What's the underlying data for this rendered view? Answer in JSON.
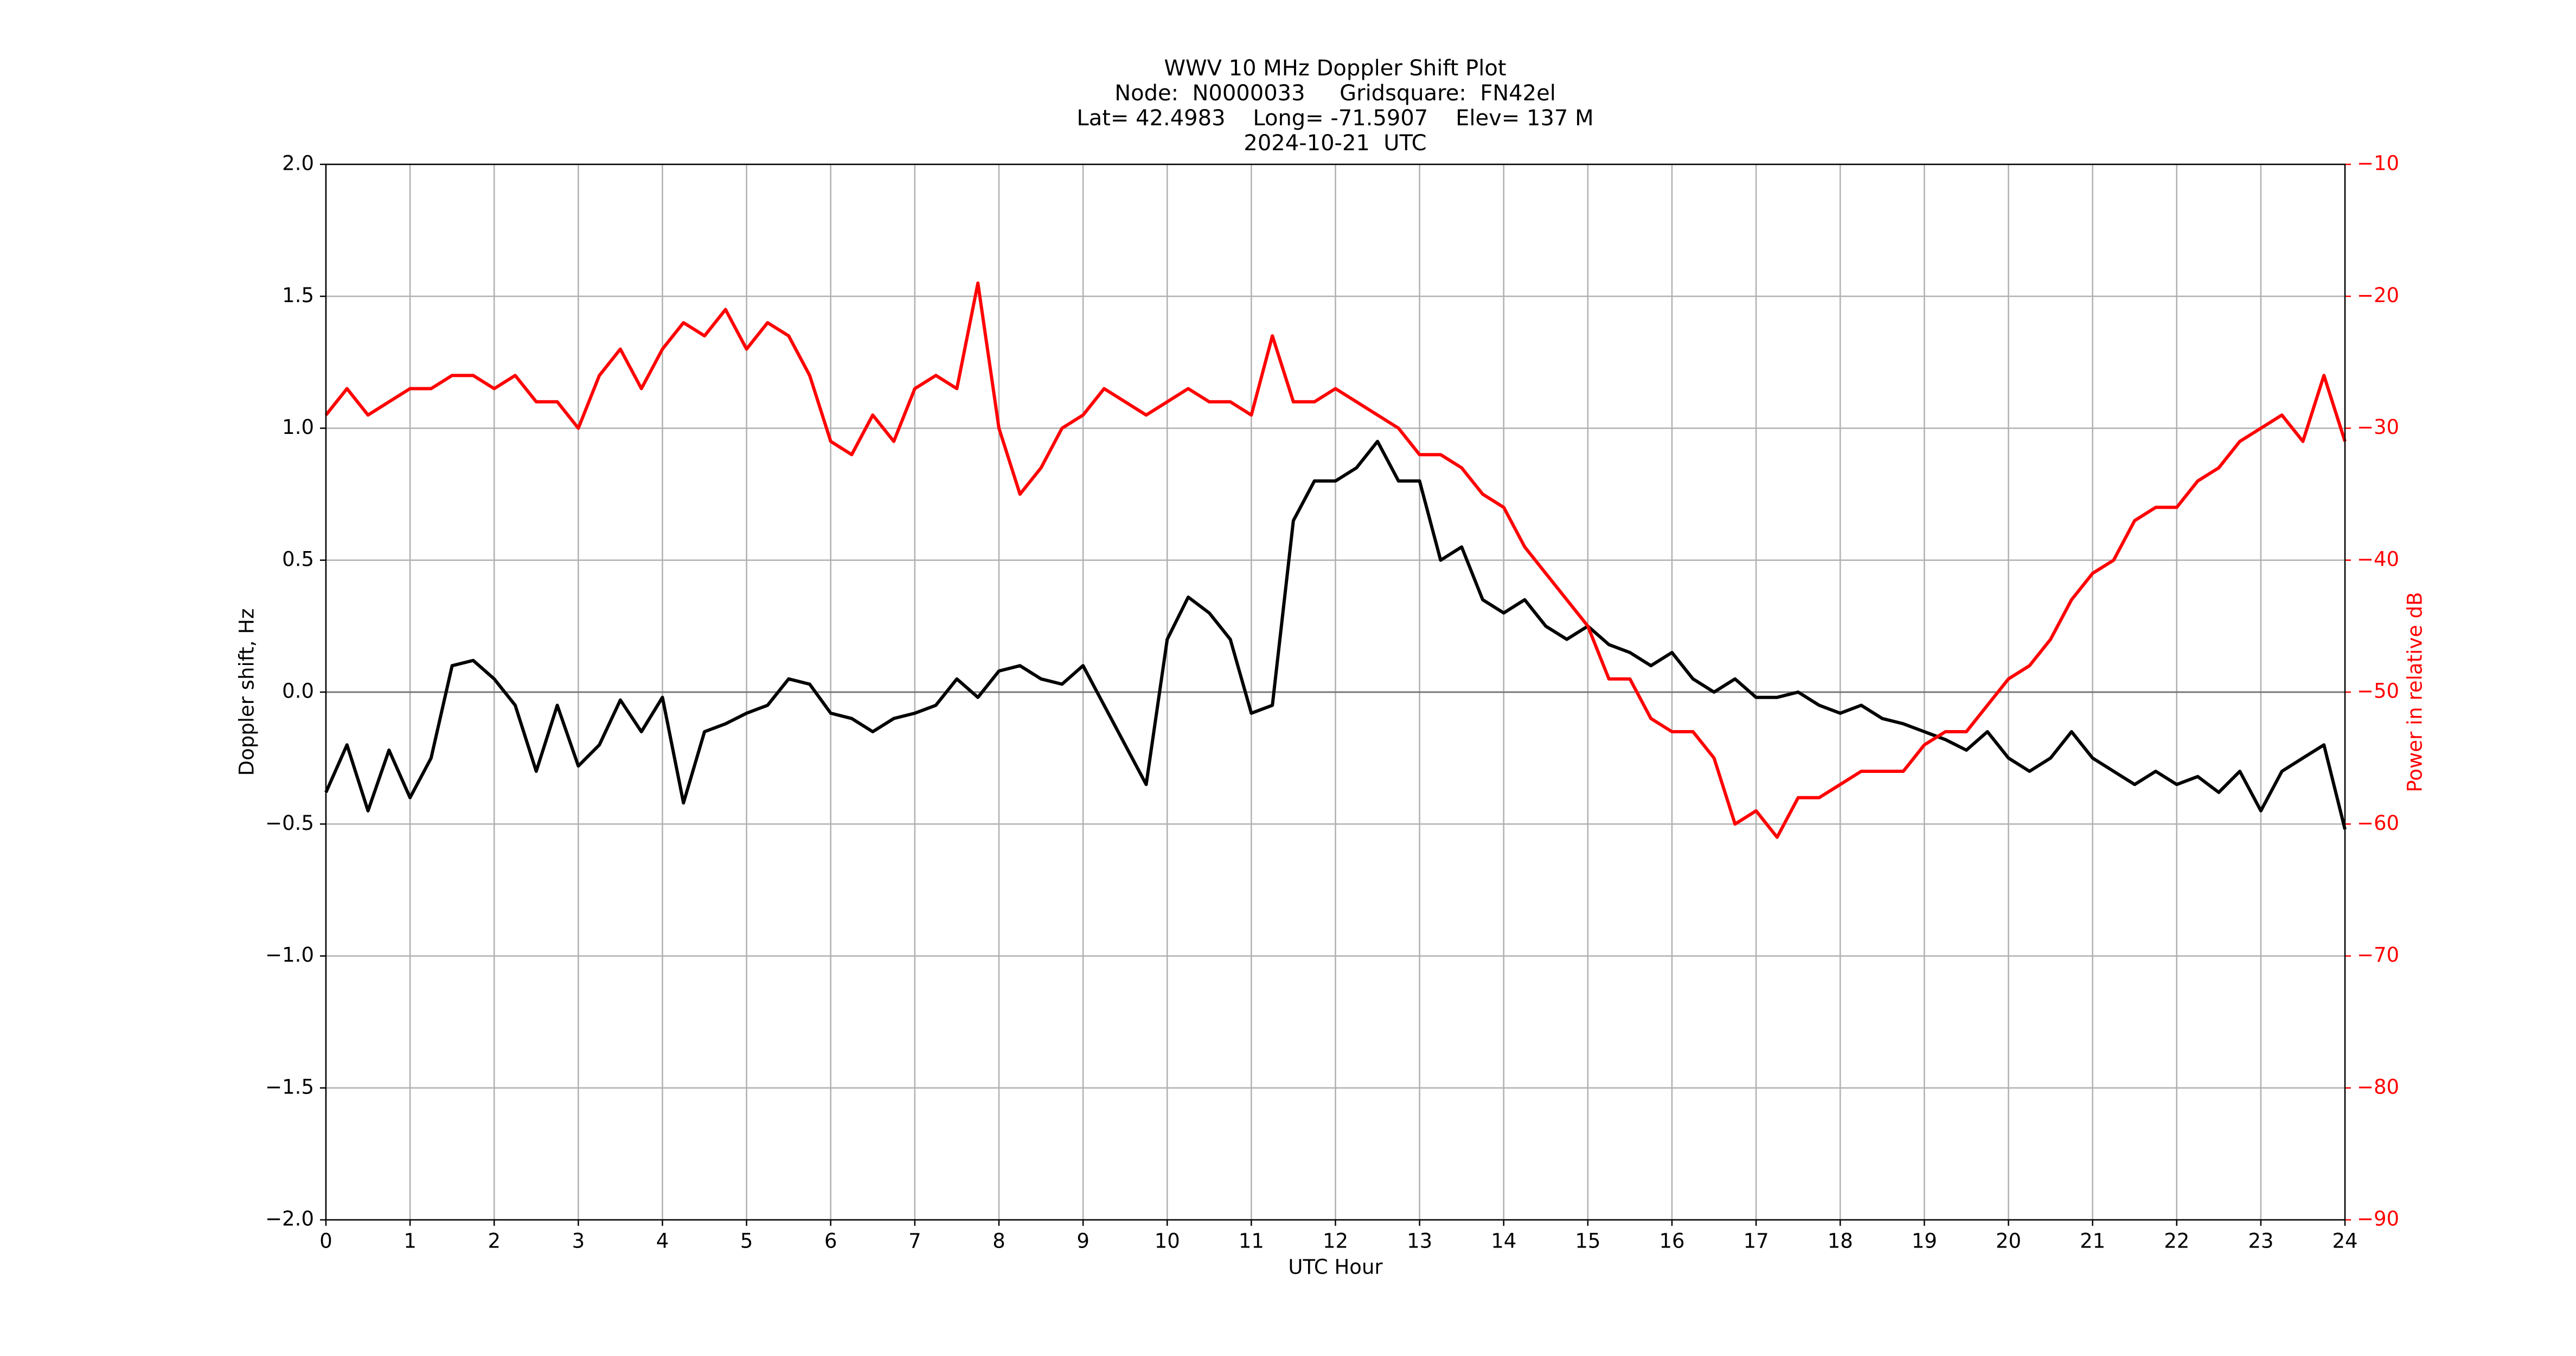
{
  "chart_data": {
    "type": "line",
    "title": [
      "WWV 10 MHz Doppler Shift Plot",
      "Node:  N0000033     Gridsquare:  FN42el",
      "Lat= 42.4983    Long= -71.5907    Elev= 137 M",
      "2024-10-21  UTC"
    ],
    "x_label": "UTC Hour",
    "y_label": "Doppler shift, Hz",
    "y2_label": "Power in relative dB",
    "x": [
      0,
      0.25,
      0.5,
      0.75,
      1,
      1.25,
      1.5,
      1.75,
      2,
      2.25,
      2.5,
      2.75,
      3,
      3.25,
      3.5,
      3.75,
      4,
      4.25,
      4.5,
      4.75,
      5,
      5.25,
      5.5,
      5.75,
      6,
      6.25,
      6.5,
      6.75,
      7,
      7.25,
      7.5,
      7.75,
      8,
      8.25,
      8.5,
      8.75,
      9,
      9.25,
      9.5,
      9.75,
      10,
      10.25,
      10.5,
      10.75,
      11,
      11.25,
      11.5,
      11.75,
      12,
      12.25,
      12.5,
      12.75,
      13,
      13.25,
      13.5,
      13.75,
      14,
      14.25,
      14.5,
      14.75,
      15,
      15.25,
      15.5,
      15.75,
      16,
      16.25,
      16.5,
      16.75,
      17,
      17.25,
      17.5,
      17.75,
      18,
      18.25,
      18.5,
      18.75,
      19,
      19.25,
      19.5,
      19.75,
      20,
      20.25,
      20.5,
      20.75,
      21,
      21.25,
      21.5,
      21.75,
      22,
      22.25,
      22.5,
      22.75,
      23,
      23.25,
      23.5,
      23.75,
      24
    ],
    "series": [
      {
        "color": "#000000",
        "values": [
          -0.38,
          -0.2,
          -0.45,
          -0.22,
          -0.4,
          -0.25,
          0.1,
          0.12,
          0.05,
          -0.05,
          -0.3,
          -0.05,
          -0.28,
          -0.2,
          -0.03,
          -0.15,
          -0.02,
          -0.42,
          -0.15,
          -0.12,
          -0.08,
          -0.05,
          0.05,
          0.03,
          -0.08,
          -0.1,
          -0.15,
          -0.1,
          -0.08,
          -0.05,
          0.05,
          -0.02,
          0.08,
          0.1,
          0.05,
          0.03,
          0.1,
          -0.05,
          -0.2,
          -0.35,
          0.2,
          0.36,
          0.3,
          0.2,
          -0.08,
          -0.05,
          0.65,
          0.8,
          0.8,
          0.85,
          0.95,
          0.8,
          0.8,
          0.5,
          0.55,
          0.35,
          0.3,
          0.35,
          0.25,
          0.2,
          0.25,
          0.18,
          0.15,
          0.1,
          0.15,
          0.05,
          0,
          0.05,
          -0.02,
          -0.02,
          0,
          -0.05,
          -0.08,
          -0.05,
          -0.1,
          -0.12,
          -0.15,
          -0.18,
          -0.22,
          -0.15,
          -0.25,
          -0.3,
          -0.25,
          -0.15,
          -0.25,
          -0.3,
          -0.35,
          -0.3,
          -0.35,
          -0.32,
          -0.38,
          -0.3,
          -0.45,
          -0.3,
          -0.25,
          -0.2,
          -0.52
        ]
      },
      {
        "color": "#ff0000",
        "axis": "y2",
        "values": [
          -29,
          -27,
          -29,
          -28,
          -27,
          -27,
          -26,
          -26,
          -27,
          -26,
          -28,
          -28,
          -30,
          -26,
          -24,
          -27,
          -24,
          -22,
          -23,
          -21,
          -24,
          -22,
          -23,
          -26,
          -31,
          -32,
          -29,
          -31,
          -27,
          -26,
          -27,
          -19,
          -30,
          -35,
          -33,
          -30,
          -29,
          -27,
          -28,
          -29,
          -28,
          -27,
          -28,
          -28,
          -29,
          -23,
          -28,
          -28,
          -27,
          -28,
          -29,
          -30,
          -32,
          -32,
          -33,
          -35,
          -36,
          -39,
          -41,
          -43,
          -45,
          -49,
          -49,
          -52,
          -53,
          -53,
          -55,
          -60,
          -59,
          -61,
          -58,
          -58,
          -57,
          -56,
          -56,
          -56,
          -54,
          -53,
          -53,
          -51,
          -49,
          -48,
          -46,
          -43,
          -41,
          -40,
          -37,
          -36,
          -36,
          -34,
          -33,
          -31,
          -30,
          -29,
          -31,
          -26,
          -31
        ]
      }
    ],
    "xlim": [
      0,
      24
    ],
    "xticks": [
      0,
      1,
      2,
      3,
      4,
      5,
      6,
      7,
      8,
      9,
      10,
      11,
      12,
      13,
      14,
      15,
      16,
      17,
      18,
      19,
      20,
      21,
      22,
      23,
      24
    ],
    "ylim": [
      -2,
      2
    ],
    "yticks": [
      {
        "value": -2,
        "label": "−2.0"
      },
      {
        "value": -1.5,
        "label": "−1.5"
      },
      {
        "value": -1,
        "label": "−1.0"
      },
      {
        "value": -0.5,
        "label": "−0.5"
      },
      {
        "value": 0,
        "label": "0.0"
      },
      {
        "value": 0.5,
        "label": "0.5"
      },
      {
        "value": 1,
        "label": "1.0"
      },
      {
        "value": 1.5,
        "label": "1.5"
      },
      {
        "value": 2,
        "label": "2.0"
      }
    ],
    "y2lim": [
      -90,
      -10
    ],
    "y2ticks": [
      {
        "value": -90,
        "label": "−90"
      },
      {
        "value": -80,
        "label": "−80"
      },
      {
        "value": -70,
        "label": "−70"
      },
      {
        "value": -60,
        "label": "−60"
      },
      {
        "value": -50,
        "label": "−50"
      },
      {
        "value": -40,
        "label": "−40"
      },
      {
        "value": -30,
        "label": "−30"
      },
      {
        "value": -20,
        "label": "−20"
      },
      {
        "value": -10,
        "label": "−10"
      }
    ],
    "y2_color": "#ff0000",
    "hline": 0,
    "grid": true
  }
}
